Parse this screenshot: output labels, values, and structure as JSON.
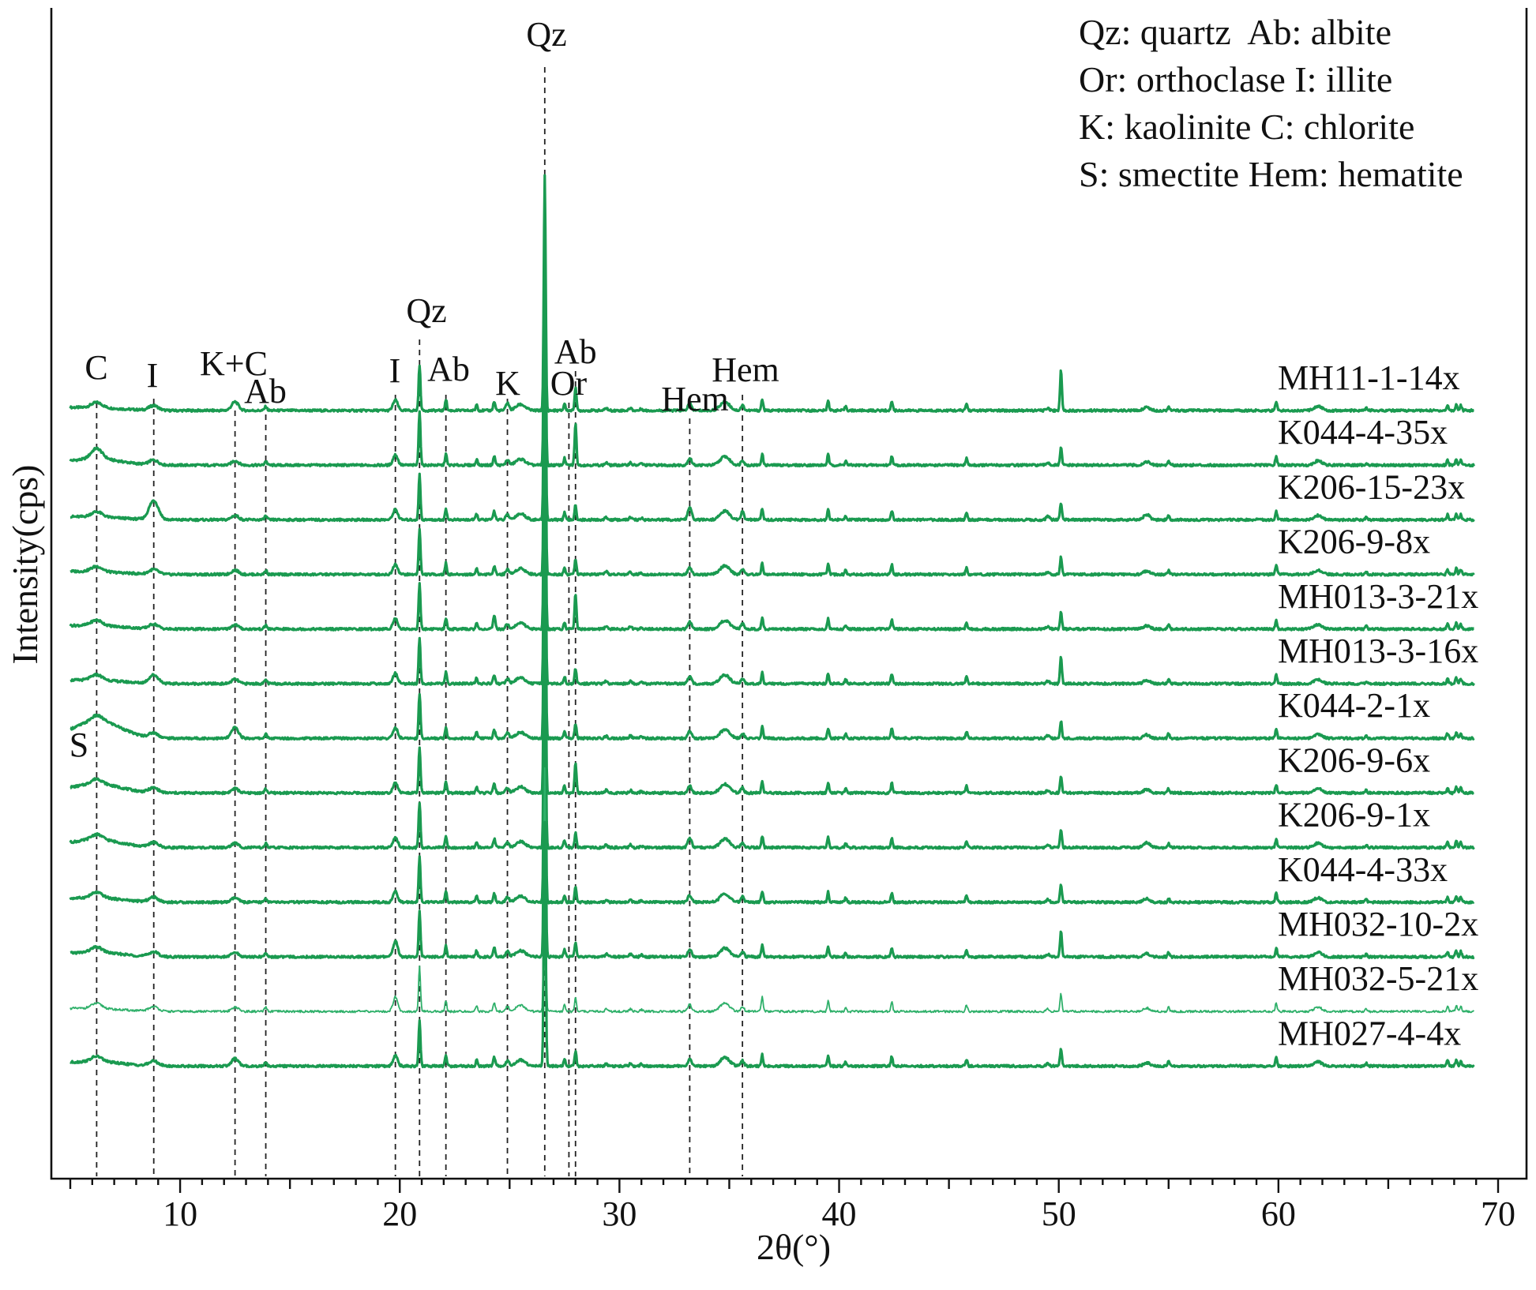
{
  "chart_data": {
    "type": "line",
    "xlabel": "2θ(°)",
    "ylabel": "Intensity(cps)",
    "xlim": [
      5,
      70
    ],
    "x_ticks": [
      10,
      20,
      30,
      40,
      50,
      60,
      70
    ],
    "grid": false,
    "colors": {
      "pattern": "#1a9a50",
      "pattern_light": "#2fb06a",
      "reference": "#222222"
    },
    "legend_lines": [
      "Qz: quartz  Ab: albite",
      "Or: orthoclase I: illite",
      "K: kaolinite C: chlorite",
      "S: smectite Hem: hematite"
    ],
    "reference_lines": [
      {
        "x": 6.2,
        "label": "C"
      },
      {
        "x": 8.8,
        "label": "I"
      },
      {
        "x": 12.5,
        "label": "K+C"
      },
      {
        "x": 13.9,
        "label": "Ab"
      },
      {
        "x": 19.8,
        "label": "I"
      },
      {
        "x": 20.9,
        "label": "Qz"
      },
      {
        "x": 22.1,
        "label": "Ab"
      },
      {
        "x": 24.9,
        "label": "K"
      },
      {
        "x": 26.6,
        "label": "Qz"
      },
      {
        "x": 27.7,
        "label": "Or"
      },
      {
        "x": 28.0,
        "label": "Ab"
      },
      {
        "x": 33.2,
        "label": "Hem"
      },
      {
        "x": 35.6,
        "label": "Hem"
      }
    ],
    "extra_labels": [
      {
        "label": "S",
        "x": 5.4
      }
    ],
    "series": [
      {
        "name": "MH11-1-14x",
        "baseline": 0.0,
        "s": 0.1,
        "rel": {
          "13.9": 1.0,
          "12.5": 2.0,
          "24.9": 1.5,
          "28.0": 1.6,
          "35.0": 1.0,
          "50.1": 2.3,
          "60.0": 1.3
        }
      },
      {
        "name": "K044-4-35x",
        "baseline": 1.0,
        "s": 0.5,
        "rel": {
          "28.0": 2.8,
          "20.9": 1.2,
          "6.2": 2.0
        }
      },
      {
        "name": "K206-15-23x",
        "baseline": 2.0,
        "s": 0.1,
        "rel": {
          "8.8": 4.0,
          "33.2": 1.8,
          "35.6": 1.5,
          "54.0": 1.5,
          "49.5": 1.4
        }
      },
      {
        "name": "K206-9-8x",
        "baseline": 3.0,
        "s": 0.1,
        "rel": {}
      },
      {
        "name": "MH013-3-21x",
        "baseline": 4.0,
        "s": 0.2,
        "rel": {
          "28.0": 2.4,
          "24.3": 1.5
        }
      },
      {
        "name": "MH013-3-16x",
        "baseline": 5.0,
        "s": 0.2,
        "rel": {
          "8.8": 1.8,
          "50.1": 1.6
        }
      },
      {
        "name": "K044-2-1x",
        "baseline": 6.0,
        "s": 1.8,
        "rel": {
          "12.5": 2.5,
          "25.2": 1.5
        }
      },
      {
        "name": "K206-9-6x",
        "baseline": 7.0,
        "s": 0.8,
        "rel": {
          "28.0": 2.0
        }
      },
      {
        "name": "K206-9-1x",
        "baseline": 8.0,
        "s": 0.7,
        "rel": {
          "54.0": 1.5,
          "33.2": 1.4
        }
      },
      {
        "name": "K044-4-33x",
        "baseline": 9.0,
        "s": 0.3,
        "rel": {}
      },
      {
        "name": "MH032-10-2x",
        "baseline": 10.0,
        "s": 0.3,
        "rel": {
          "19.8": 1.5,
          "50.1": 1.5
        }
      },
      {
        "name": "MH032-5-21x",
        "baseline": 11.0,
        "s": 0.1,
        "rel": {
          "19.8": 1.4,
          "36.5": 1.3
        }
      },
      {
        "name": "MH027-4-4x",
        "baseline": 12.0,
        "s": 0.3,
        "rel": {
          "12.5": 1.7
        }
      }
    ]
  }
}
